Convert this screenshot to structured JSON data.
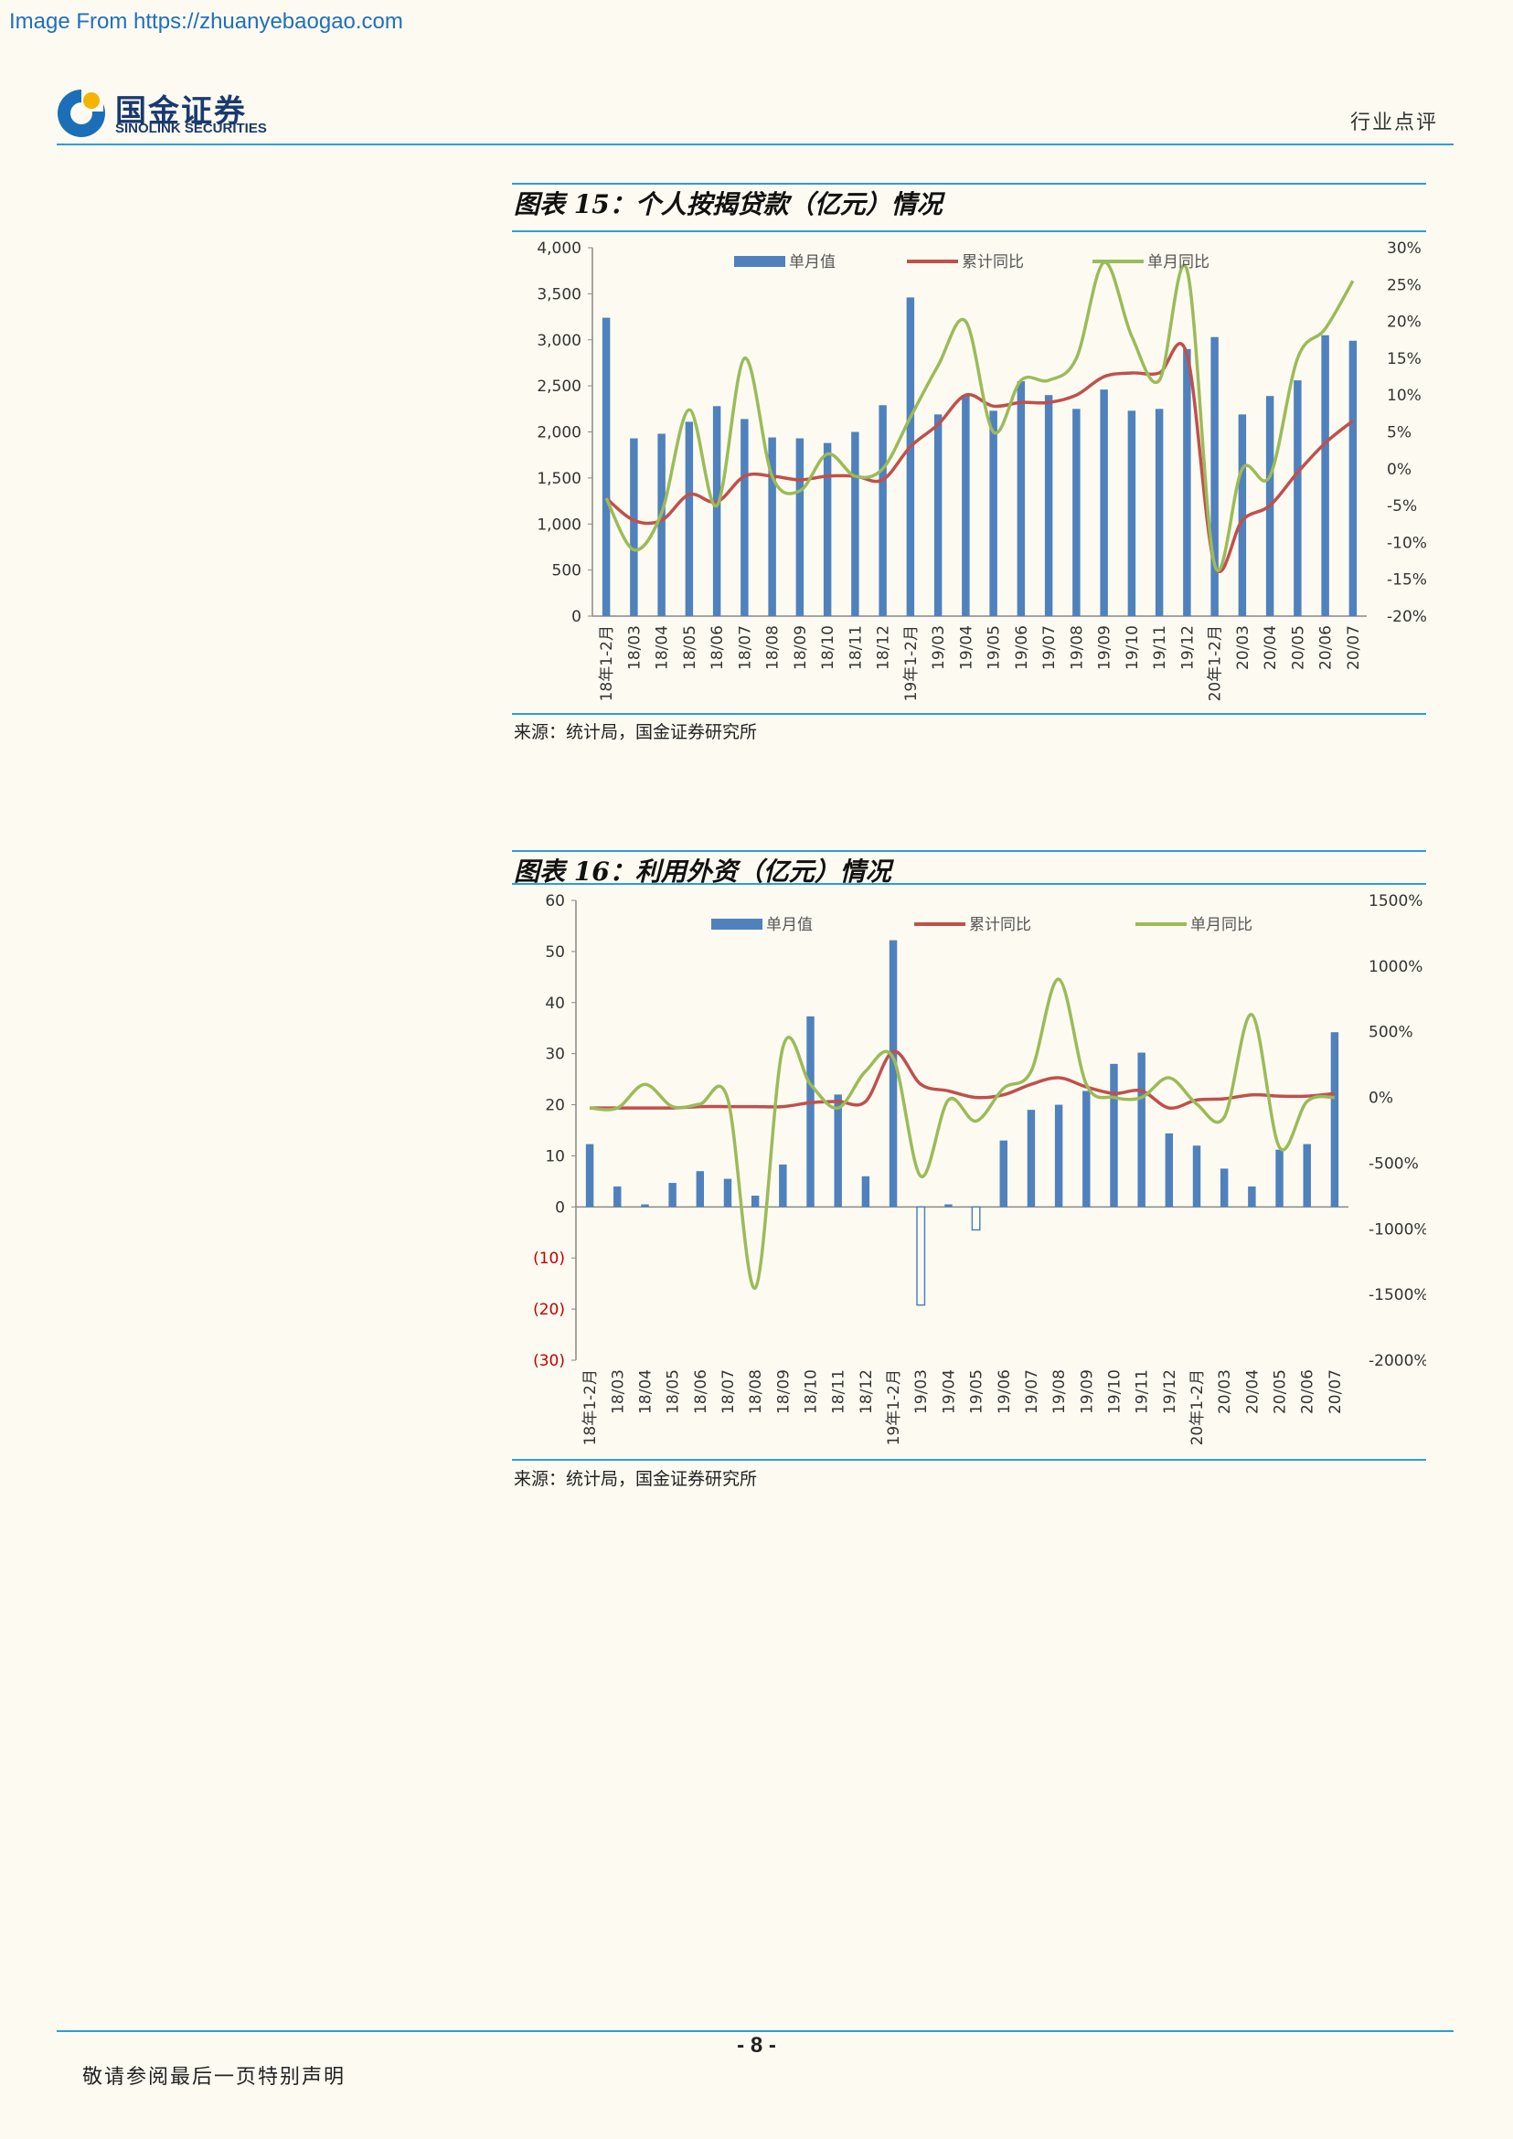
{
  "watermark": "Image From https://zhuanyebaogao.com",
  "header": {
    "company_cn": "国金证券",
    "company_en": "SINOLINK SECURITIES",
    "section": "行业点评",
    "brand_color": "#1a3a6e",
    "accent_color": "#2b9ed8"
  },
  "figures": [
    {
      "title": "图表 15：个人按揭贷款（亿元）情况",
      "source": "来源：统计局，国金证券研究所"
    },
    {
      "title": "图表 16：利用外资（亿元）情况",
      "source": "来源：统计局，国金证券研究所"
    }
  ],
  "chart_data": [
    {
      "type": "bar+line",
      "title": "图表 15：个人按揭贷款（亿元）情况",
      "categories": [
        "18年1-2月",
        "18/03",
        "18/04",
        "18/05",
        "18/06",
        "18/07",
        "18/08",
        "18/09",
        "18/10",
        "18/11",
        "18/12",
        "19年1-2月",
        "19/03",
        "19/04",
        "19/05",
        "19/06",
        "19/07",
        "19/08",
        "19/09",
        "19/10",
        "19/11",
        "19/12",
        "20年1-2月",
        "20/03",
        "20/04",
        "20/05",
        "20/06",
        "20/07"
      ],
      "left_axis": {
        "min": 0,
        "max": 4000,
        "ticks": [
          "0",
          "500",
          "1,000",
          "1,500",
          "2,000",
          "2,500",
          "3,000",
          "3,500",
          "4,000"
        ]
      },
      "right_axis": {
        "min": -20,
        "max": 30,
        "ticks": [
          "-20%",
          "-15%",
          "-10%",
          "-5%",
          "0%",
          "5%",
          "10%",
          "15%",
          "20%",
          "25%",
          "30%"
        ]
      },
      "legend": [
        "单月值",
        "累计同比",
        "单月同比"
      ],
      "series": [
        {
          "name": "单月值",
          "type": "bar",
          "axis": "left",
          "color": "#4f81bd",
          "values": [
            3240,
            1930,
            1980,
            2110,
            2280,
            2140,
            1940,
            1930,
            1880,
            2000,
            2290,
            3460,
            2190,
            2400,
            2230,
            2550,
            2400,
            2250,
            2460,
            2230,
            2250,
            2900,
            3030,
            2190,
            2390,
            2560,
            3050,
            2990
          ]
        },
        {
          "name": "累计同比",
          "type": "line",
          "axis": "right",
          "color": "#c0504d",
          "values": [
            -4,
            -7,
            -7,
            -3.5,
            -4.5,
            -1,
            -1,
            -1.5,
            -1,
            -1,
            -1.5,
            3,
            6,
            10,
            8.5,
            9,
            9,
            10,
            12.5,
            13,
            13,
            15.5,
            -13,
            -7,
            -5,
            -0.5,
            3.5,
            6.5
          ]
        },
        {
          "name": "单月同比",
          "type": "line",
          "axis": "right",
          "color": "#9bbb59",
          "values": [
            -4,
            -11,
            -6,
            8,
            -5,
            15,
            -1,
            -3,
            2,
            -1,
            0,
            7,
            14,
            20,
            5,
            12,
            12,
            15,
            28,
            18,
            12,
            27,
            -13,
            0,
            -1,
            15,
            19,
            25.5
          ]
        }
      ]
    },
    {
      "type": "bar+line",
      "title": "图表 16：利用外资（亿元）情况",
      "categories": [
        "18年1-2月",
        "18/03",
        "18/04",
        "18/05",
        "18/06",
        "18/07",
        "18/08",
        "18/09",
        "18/10",
        "18/11",
        "18/12",
        "19年1-2月",
        "19/03",
        "19/04",
        "19/05",
        "19/06",
        "19/07",
        "19/08",
        "19/09",
        "19/10",
        "19/11",
        "19/12",
        "20年1-2月",
        "20/03",
        "20/04",
        "20/05",
        "20/06",
        "20/07"
      ],
      "left_axis": {
        "min": -30,
        "max": 60,
        "ticks": [
          "(30)",
          "(20)",
          "(10)",
          "0",
          "10",
          "20",
          "30",
          "40",
          "50",
          "60"
        ],
        "negative_color": "#c00000"
      },
      "right_axis": {
        "min": -2000,
        "max": 1500,
        "ticks": [
          "-2000%",
          "-1500%",
          "-1000%",
          "-500%",
          "0%",
          "500%",
          "1000%",
          "1500%"
        ]
      },
      "legend": [
        "单月值",
        "累计同比",
        "单月同比"
      ],
      "series": [
        {
          "name": "单月值",
          "type": "bar",
          "axis": "left",
          "color": "#4f81bd",
          "values": [
            12.3,
            4,
            0.5,
            4.7,
            7,
            5.5,
            2.2,
            8.3,
            37.3,
            22,
            6,
            52.2,
            -19.2,
            0.5,
            -4.5,
            13,
            19,
            20,
            22.7,
            28,
            30.2,
            14.4,
            12,
            7.5,
            4,
            11.2,
            12.3,
            34.2
          ]
        },
        {
          "name": "累计同比",
          "type": "line",
          "axis": "right",
          "color": "#c0504d",
          "values": [
            -80,
            -80,
            -80,
            -80,
            -70,
            -70,
            -70,
            -70,
            -40,
            -30,
            -30,
            350,
            100,
            50,
            0,
            20,
            100,
            150,
            80,
            30,
            50,
            -80,
            -20,
            -10,
            20,
            10,
            10,
            30
          ]
        },
        {
          "name": "单月同比",
          "type": "line",
          "axis": "right",
          "color": "#9bbb59",
          "values": [
            -80,
            -80,
            100,
            -70,
            -50,
            -10,
            -1450,
            380,
            100,
            -80,
            200,
            300,
            -600,
            -20,
            -180,
            70,
            200,
            900,
            100,
            0,
            0,
            150,
            -50,
            -150,
            630,
            -380,
            -30,
            0
          ]
        }
      ]
    }
  ],
  "footer": {
    "page": "- 8 -",
    "note": "敬请参阅最后一页特别声明"
  }
}
